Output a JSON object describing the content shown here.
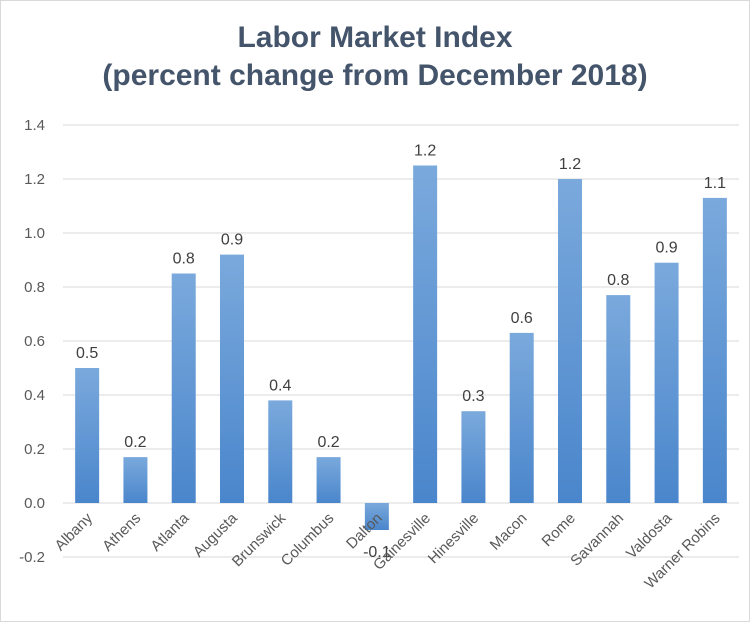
{
  "chart_data": {
    "type": "bar",
    "title_line1": "Labor Market Index",
    "title_line2": "(percent change from December 2018)",
    "xlabel": "",
    "ylabel": "",
    "categories": [
      "Albany",
      "Athens",
      "Atlanta",
      "Augusta",
      "Brunswick",
      "Columbus",
      "Dalton",
      "Gainesville",
      "Hinesville",
      "Macon",
      "Rome",
      "Savannah",
      "Valdosta",
      "Warner Robins"
    ],
    "values": [
      0.5,
      0.17,
      0.85,
      0.92,
      0.38,
      0.17,
      -0.1,
      1.25,
      0.34,
      0.63,
      1.2,
      0.77,
      0.89,
      1.13
    ],
    "data_labels": [
      "0.5",
      "0.2",
      "0.8",
      "0.9",
      "0.4",
      "0.2",
      "-0.1",
      "1.2",
      "0.3",
      "0.6",
      "1.2",
      "0.8",
      "0.9",
      "1.1"
    ],
    "ylim": [
      -0.2,
      1.4
    ],
    "yticks": [
      -0.2,
      0.0,
      0.2,
      0.4,
      0.6,
      0.8,
      1.0,
      1.2,
      1.4
    ],
    "ytick_labels": [
      "-0.2",
      "0.0",
      "0.2",
      "0.4",
      "0.6",
      "0.8",
      "1.0",
      "1.2",
      "1.4"
    ],
    "grid": true,
    "legend": "none",
    "colors": {
      "bar_top": "#7aa9dc",
      "bar_bottom": "#4a86cc",
      "grid": "#d9d9d9",
      "title": "#44546a"
    }
  }
}
